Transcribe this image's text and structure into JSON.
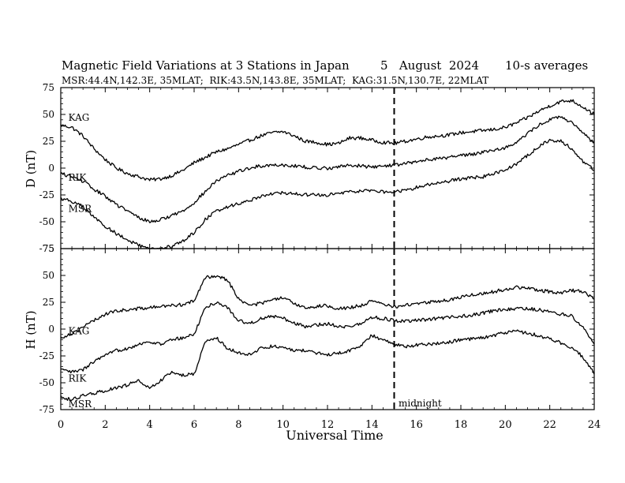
{
  "title": {
    "main": "Magnetic Field Variations at 3 Stations in Japan",
    "date": "5   August  2024",
    "avg": "10-s averages",
    "stations": "MSR:44.4N,142.3E, 35MLAT;  RIK:43.5N,143.8E, 35MLAT;  KAG:31.5N,130.7E, 22MLAT"
  },
  "xlabel": "Universal Time",
  "midnight_label": "midnight",
  "colors": {
    "line": "#000000",
    "background": "#ffffff"
  },
  "chart_data": [
    {
      "type": "line",
      "panel": "D",
      "ylabel": "D (nT)",
      "xlim": [
        0,
        24
      ],
      "ylim": [
        -75,
        75
      ],
      "xticks": [
        0,
        2,
        4,
        6,
        8,
        10,
        12,
        14,
        16,
        18,
        20,
        22,
        24
      ],
      "yticks": [
        -75,
        -50,
        -25,
        0,
        25,
        50,
        75
      ],
      "vline_x": 15,
      "series": [
        {
          "name": "KAG",
          "label_at": [
            0.2,
            47
          ],
          "x": [
            0,
            0.5,
            1,
            1.5,
            2,
            2.5,
            3,
            3.5,
            4,
            4.5,
            5,
            5.5,
            6,
            6.5,
            7,
            7.5,
            8,
            8.5,
            9,
            9.5,
            10,
            10.5,
            11,
            11.5,
            12,
            12.5,
            13,
            13.5,
            14,
            14.5,
            15,
            15.5,
            16,
            16.5,
            17,
            17.5,
            18,
            18.5,
            19,
            19.5,
            20,
            20.5,
            21,
            21.5,
            22,
            22.5,
            23,
            23.5,
            24
          ],
          "values": [
            40,
            38,
            30,
            18,
            8,
            0,
            -5,
            -8,
            -11,
            -10,
            -7,
            -2,
            5,
            10,
            15,
            18,
            22,
            26,
            30,
            33,
            34,
            30,
            25,
            24,
            22,
            23,
            28,
            28,
            26,
            24,
            23,
            25,
            27,
            29,
            30,
            31,
            33,
            34,
            35,
            36,
            38,
            42,
            47,
            53,
            58,
            62,
            63,
            57,
            50
          ]
        },
        {
          "name": "RIK",
          "label_at": [
            0.2,
            -9
          ],
          "x": [
            0,
            0.5,
            1,
            1.5,
            2,
            2.5,
            3,
            3.5,
            4,
            4.5,
            5,
            5.5,
            6,
            6.5,
            7,
            7.5,
            8,
            8.5,
            9,
            9.5,
            10,
            10.5,
            11,
            11.5,
            12,
            12.5,
            13,
            13.5,
            14,
            14.5,
            15,
            15.5,
            16,
            16.5,
            17,
            17.5,
            18,
            18.5,
            19,
            19.5,
            20,
            20.5,
            21,
            21.5,
            22,
            22.5,
            23,
            23.5,
            24
          ],
          "values": [
            -5,
            -8,
            -12,
            -20,
            -26,
            -34,
            -40,
            -46,
            -50,
            -48,
            -44,
            -40,
            -32,
            -22,
            -12,
            -7,
            -3,
            0,
            2,
            3,
            3,
            2,
            1,
            0,
            0,
            1,
            3,
            2,
            1,
            2,
            3,
            4,
            6,
            8,
            9,
            10,
            12,
            13,
            15,
            17,
            19,
            24,
            32,
            40,
            45,
            48,
            42,
            32,
            24
          ]
        },
        {
          "name": "MSR",
          "label_at": [
            0.2,
            -38
          ],
          "x": [
            0,
            0.5,
            1,
            1.5,
            2,
            2.5,
            3,
            3.5,
            4,
            4.5,
            5,
            5.5,
            6,
            6.5,
            7,
            7.5,
            8,
            8.5,
            9,
            9.5,
            10,
            10.5,
            11,
            11.5,
            12,
            12.5,
            13,
            13.5,
            14,
            14.5,
            15,
            15.5,
            16,
            16.5,
            17,
            17.5,
            18,
            18.5,
            19,
            19.5,
            20,
            20.5,
            21,
            21.5,
            22,
            22.5,
            23,
            23.5,
            24
          ],
          "values": [
            -28,
            -31,
            -36,
            -46,
            -54,
            -61,
            -67,
            -72,
            -76,
            -75,
            -73,
            -68,
            -60,
            -48,
            -40,
            -36,
            -33,
            -30,
            -26,
            -24,
            -23,
            -24,
            -25,
            -25,
            -25,
            -24,
            -22,
            -21,
            -21,
            -22,
            -22,
            -21,
            -18,
            -15,
            -14,
            -12,
            -10,
            -9,
            -8,
            -5,
            -2,
            4,
            12,
            20,
            26,
            25,
            18,
            6,
            -2
          ]
        }
      ]
    },
    {
      "type": "line",
      "panel": "H",
      "ylabel": "H (nT)",
      "xlim": [
        0,
        24
      ],
      "ylim": [
        -75,
        75
      ],
      "xticks": [
        0,
        2,
        4,
        6,
        8,
        10,
        12,
        14,
        16,
        18,
        20,
        22,
        24
      ],
      "yticks": [
        -75,
        -50,
        -25,
        0,
        25,
        50,
        75
      ],
      "vline_x": 15,
      "series": [
        {
          "name": "KAG",
          "label_at": [
            0.2,
            -2
          ],
          "x": [
            0,
            0.5,
            1,
            1.5,
            2,
            2.5,
            3,
            3.5,
            4,
            4.5,
            5,
            5.5,
            6,
            6.5,
            7,
            7.5,
            8,
            8.5,
            9,
            9.5,
            10,
            10.5,
            11,
            11.5,
            12,
            12.5,
            13,
            13.5,
            14,
            14.5,
            15,
            15.5,
            16,
            16.5,
            17,
            17.5,
            18,
            18.5,
            19,
            19.5,
            20,
            20.5,
            21,
            21.5,
            22,
            22.5,
            23,
            23.5,
            24
          ],
          "values": [
            -8,
            -4,
            2,
            8,
            14,
            17,
            18,
            19,
            20,
            21,
            22,
            23,
            26,
            48,
            50,
            46,
            28,
            22,
            24,
            27,
            29,
            24,
            20,
            21,
            22,
            19,
            20,
            22,
            26,
            23,
            21,
            22,
            24,
            25,
            26,
            27,
            30,
            32,
            33,
            35,
            37,
            39,
            38,
            36,
            35,
            34,
            36,
            35,
            28
          ]
        },
        {
          "name": "RIK",
          "label_at": [
            0.2,
            -46
          ],
          "x": [
            0,
            0.5,
            1,
            1.5,
            2,
            2.5,
            3,
            3.5,
            4,
            4.5,
            5,
            5.5,
            6,
            6.5,
            7,
            7.5,
            8,
            8.5,
            9,
            9.5,
            10,
            10.5,
            11,
            11.5,
            12,
            12.5,
            13,
            13.5,
            14,
            14.5,
            15,
            15.5,
            16,
            16.5,
            17,
            17.5,
            18,
            18.5,
            19,
            19.5,
            20,
            20.5,
            21,
            21.5,
            22,
            22.5,
            23,
            23.5,
            24
          ],
          "values": [
            -38,
            -40,
            -38,
            -30,
            -25,
            -20,
            -18,
            -14,
            -12,
            -14,
            -10,
            -8,
            -5,
            20,
            25,
            20,
            8,
            5,
            10,
            12,
            10,
            6,
            2,
            4,
            5,
            3,
            2,
            5,
            11,
            10,
            8,
            7,
            8,
            9,
            10,
            11,
            12,
            13,
            15,
            17,
            18,
            19,
            19,
            18,
            16,
            14,
            12,
            2,
            -14
          ]
        },
        {
          "name": "MSR",
          "label_at": [
            0.2,
            -70
          ],
          "x": [
            0,
            0.5,
            1,
            1.5,
            2,
            2.5,
            3,
            3.5,
            4,
            4.5,
            5,
            5.5,
            6,
            6.5,
            7,
            7.5,
            8,
            8.5,
            9,
            9.5,
            10,
            10.5,
            11,
            11.5,
            12,
            12.5,
            13,
            13.5,
            14,
            14.5,
            15,
            15.5,
            16,
            16.5,
            17,
            17.5,
            18,
            18.5,
            19,
            19.5,
            20,
            20.5,
            21,
            21.5,
            22,
            22.5,
            23,
            23.5,
            24
          ],
          "values": [
            -63,
            -66,
            -62,
            -60,
            -57,
            -55,
            -52,
            -48,
            -55,
            -48,
            -40,
            -43,
            -42,
            -12,
            -8,
            -18,
            -22,
            -24,
            -18,
            -16,
            -17,
            -20,
            -20,
            -22,
            -24,
            -22,
            -20,
            -15,
            -6,
            -10,
            -14,
            -16,
            -15,
            -14,
            -13,
            -12,
            -10,
            -9,
            -8,
            -6,
            -3,
            -2,
            -4,
            -6,
            -9,
            -13,
            -17,
            -26,
            -42
          ]
        }
      ]
    }
  ]
}
